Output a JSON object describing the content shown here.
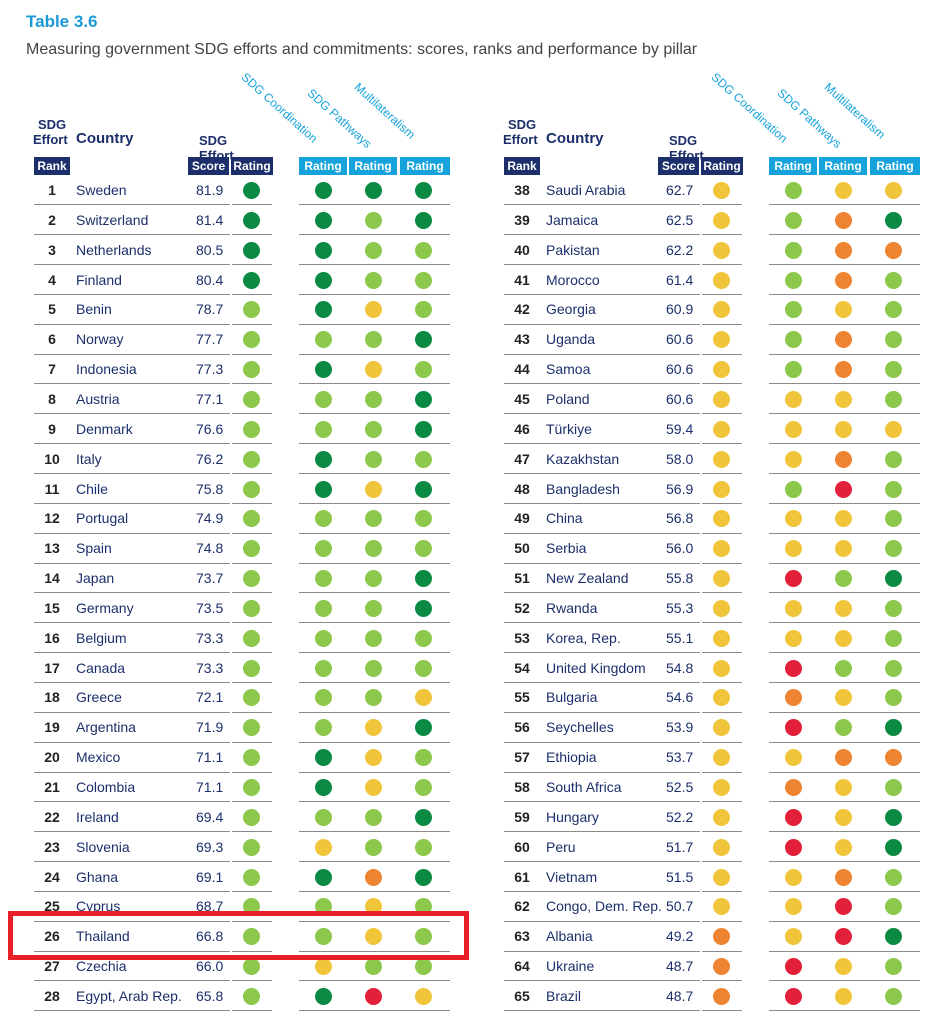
{
  "title": "Table 3.6",
  "subtitle": "Measuring government SDG efforts and commitments: scores, ranks and performance by pillar",
  "headers": {
    "sdg_effort_line1": "SDG",
    "sdg_effort_line2": "Effort",
    "country": "Country",
    "sdg_effort": "SDG Effort",
    "rank": "Rank",
    "score": "Score",
    "rating": "Rating",
    "pillar1": "SDG Coordination",
    "pillar2": "SDG Pathways",
    "pillar3": "Multilateralism"
  },
  "colors": {
    "dark_green": "#0b8a43",
    "light_green": "#8cc84b",
    "yellow": "#f0c53a",
    "orange": "#ee8431",
    "red": "#e3203a",
    "navy": "#1c2f6b",
    "cyan": "#16a3dc",
    "highlight": "#e8202a"
  },
  "left_rows": [
    {
      "rank": "1",
      "country": "Sweden",
      "score": "81.9",
      "r": [
        "DG",
        "DG",
        "DG",
        "DG"
      ]
    },
    {
      "rank": "2",
      "country": "Switzerland",
      "score": "81.4",
      "r": [
        "DG",
        "DG",
        "LG",
        "DG"
      ]
    },
    {
      "rank": "3",
      "country": "Netherlands",
      "score": "80.5",
      "r": [
        "DG",
        "DG",
        "LG",
        "LG"
      ]
    },
    {
      "rank": "4",
      "country": "Finland",
      "score": "80.4",
      "r": [
        "DG",
        "DG",
        "LG",
        "LG"
      ]
    },
    {
      "rank": "5",
      "country": "Benin",
      "score": "78.7",
      "r": [
        "LG",
        "DG",
        "Y",
        "LG"
      ]
    },
    {
      "rank": "6",
      "country": "Norway",
      "score": "77.7",
      "r": [
        "LG",
        "LG",
        "LG",
        "DG"
      ]
    },
    {
      "rank": "7",
      "country": "Indonesia",
      "score": "77.3",
      "r": [
        "LG",
        "DG",
        "Y",
        "LG"
      ]
    },
    {
      "rank": "8",
      "country": "Austria",
      "score": "77.1",
      "r": [
        "LG",
        "LG",
        "LG",
        "DG"
      ]
    },
    {
      "rank": "9",
      "country": "Denmark",
      "score": "76.6",
      "r": [
        "LG",
        "LG",
        "LG",
        "DG"
      ]
    },
    {
      "rank": "10",
      "country": "Italy",
      "score": "76.2",
      "r": [
        "LG",
        "DG",
        "LG",
        "LG"
      ]
    },
    {
      "rank": "11",
      "country": "Chile",
      "score": "75.8",
      "r": [
        "LG",
        "DG",
        "Y",
        "DG"
      ]
    },
    {
      "rank": "12",
      "country": "Portugal",
      "score": "74.9",
      "r": [
        "LG",
        "LG",
        "LG",
        "LG"
      ]
    },
    {
      "rank": "13",
      "country": "Spain",
      "score": "74.8",
      "r": [
        "LG",
        "LG",
        "LG",
        "LG"
      ]
    },
    {
      "rank": "14",
      "country": "Japan",
      "score": "73.7",
      "r": [
        "LG",
        "LG",
        "LG",
        "DG"
      ]
    },
    {
      "rank": "15",
      "country": "Germany",
      "score": "73.5",
      "r": [
        "LG",
        "LG",
        "LG",
        "DG"
      ]
    },
    {
      "rank": "16",
      "country": "Belgium",
      "score": "73.3",
      "r": [
        "LG",
        "LG",
        "LG",
        "LG"
      ]
    },
    {
      "rank": "17",
      "country": "Canada",
      "score": "73.3",
      "r": [
        "LG",
        "LG",
        "LG",
        "LG"
      ]
    },
    {
      "rank": "18",
      "country": "Greece",
      "score": "72.1",
      "r": [
        "LG",
        "LG",
        "LG",
        "Y"
      ]
    },
    {
      "rank": "19",
      "country": "Argentina",
      "score": "71.9",
      "r": [
        "LG",
        "LG",
        "Y",
        "DG"
      ]
    },
    {
      "rank": "20",
      "country": "Mexico",
      "score": "71.1",
      "r": [
        "LG",
        "DG",
        "Y",
        "LG"
      ]
    },
    {
      "rank": "21",
      "country": "Colombia",
      "score": "71.1",
      "r": [
        "LG",
        "DG",
        "Y",
        "LG"
      ]
    },
    {
      "rank": "22",
      "country": "Ireland",
      "score": "69.4",
      "r": [
        "LG",
        "LG",
        "LG",
        "DG"
      ]
    },
    {
      "rank": "23",
      "country": "Slovenia",
      "score": "69.3",
      "r": [
        "LG",
        "Y",
        "LG",
        "LG"
      ]
    },
    {
      "rank": "24",
      "country": "Ghana",
      "score": "69.1",
      "r": [
        "LG",
        "DG",
        "O",
        "DG"
      ]
    },
    {
      "rank": "25",
      "country": "Cyprus",
      "score": "68.7",
      "r": [
        "LG",
        "LG",
        "Y",
        "LG"
      ]
    },
    {
      "rank": "26",
      "country": "Thailand",
      "score": "66.8",
      "r": [
        "LG",
        "LG",
        "Y",
        "LG"
      ]
    },
    {
      "rank": "27",
      "country": "Czechia",
      "score": "66.0",
      "r": [
        "LG",
        "Y",
        "LG",
        "LG"
      ]
    },
    {
      "rank": "28",
      "country": "Egypt, Arab Rep.",
      "score": "65.8",
      "r": [
        "LG",
        "DG",
        "R",
        "Y"
      ]
    }
  ],
  "right_rows": [
    {
      "rank": "38",
      "country": "Saudi Arabia",
      "score": "62.7",
      "r": [
        "Y",
        "LG",
        "Y",
        "Y"
      ]
    },
    {
      "rank": "39",
      "country": "Jamaica",
      "score": "62.5",
      "r": [
        "Y",
        "LG",
        "O",
        "DG"
      ]
    },
    {
      "rank": "40",
      "country": "Pakistan",
      "score": "62.2",
      "r": [
        "Y",
        "LG",
        "O",
        "O"
      ]
    },
    {
      "rank": "41",
      "country": "Morocco",
      "score": "61.4",
      "r": [
        "Y",
        "LG",
        "O",
        "LG"
      ]
    },
    {
      "rank": "42",
      "country": "Georgia",
      "score": "60.9",
      "r": [
        "Y",
        "LG",
        "Y",
        "LG"
      ]
    },
    {
      "rank": "43",
      "country": "Uganda",
      "score": "60.6",
      "r": [
        "Y",
        "LG",
        "O",
        "LG"
      ]
    },
    {
      "rank": "44",
      "country": "Samoa",
      "score": "60.6",
      "r": [
        "Y",
        "LG",
        "O",
        "LG"
      ]
    },
    {
      "rank": "45",
      "country": "Poland",
      "score": "60.6",
      "r": [
        "Y",
        "Y",
        "Y",
        "LG"
      ]
    },
    {
      "rank": "46",
      "country": "Türkiye",
      "score": "59.4",
      "r": [
        "Y",
        "Y",
        "Y",
        "Y"
      ]
    },
    {
      "rank": "47",
      "country": "Kazakhstan",
      "score": "58.0",
      "r": [
        "Y",
        "Y",
        "O",
        "LG"
      ]
    },
    {
      "rank": "48",
      "country": "Bangladesh",
      "score": "56.9",
      "r": [
        "Y",
        "LG",
        "R",
        "LG"
      ]
    },
    {
      "rank": "49",
      "country": "China",
      "score": "56.8",
      "r": [
        "Y",
        "Y",
        "Y",
        "LG"
      ]
    },
    {
      "rank": "50",
      "country": "Serbia",
      "score": "56.0",
      "r": [
        "Y",
        "Y",
        "Y",
        "LG"
      ]
    },
    {
      "rank": "51",
      "country": "New Zealand",
      "score": "55.8",
      "r": [
        "Y",
        "R",
        "LG",
        "DG"
      ]
    },
    {
      "rank": "52",
      "country": "Rwanda",
      "score": "55.3",
      "r": [
        "Y",
        "Y",
        "Y",
        "LG"
      ]
    },
    {
      "rank": "53",
      "country": "Korea, Rep.",
      "score": "55.1",
      "r": [
        "Y",
        "Y",
        "Y",
        "LG"
      ]
    },
    {
      "rank": "54",
      "country": "United Kingdom",
      "score": "54.8",
      "r": [
        "Y",
        "R",
        "LG",
        "LG"
      ]
    },
    {
      "rank": "55",
      "country": "Bulgaria",
      "score": "54.6",
      "r": [
        "Y",
        "O",
        "Y",
        "LG"
      ]
    },
    {
      "rank": "56",
      "country": "Seychelles",
      "score": "53.9",
      "r": [
        "Y",
        "R",
        "LG",
        "DG"
      ]
    },
    {
      "rank": "57",
      "country": "Ethiopia",
      "score": "53.7",
      "r": [
        "Y",
        "Y",
        "O",
        "O"
      ]
    },
    {
      "rank": "58",
      "country": "South Africa",
      "score": "52.5",
      "r": [
        "Y",
        "O",
        "Y",
        "LG"
      ]
    },
    {
      "rank": "59",
      "country": "Hungary",
      "score": "52.2",
      "r": [
        "Y",
        "R",
        "Y",
        "DG"
      ]
    },
    {
      "rank": "60",
      "country": "Peru",
      "score": "51.7",
      "r": [
        "Y",
        "R",
        "Y",
        "DG"
      ]
    },
    {
      "rank": "61",
      "country": "Vietnam",
      "score": "51.5",
      "r": [
        "Y",
        "Y",
        "O",
        "LG"
      ]
    },
    {
      "rank": "62",
      "country": "Congo, Dem. Rep.",
      "score": "50.7",
      "r": [
        "Y",
        "Y",
        "R",
        "LG"
      ]
    },
    {
      "rank": "63",
      "country": "Albania",
      "score": "49.2",
      "r": [
        "O",
        "Y",
        "R",
        "DG"
      ]
    },
    {
      "rank": "64",
      "country": "Ukraine",
      "score": "48.7",
      "r": [
        "O",
        "R",
        "Y",
        "LG"
      ]
    },
    {
      "rank": "65",
      "country": "Brazil",
      "score": "48.7",
      "r": [
        "O",
        "R",
        "Y",
        "LG"
      ]
    }
  ]
}
